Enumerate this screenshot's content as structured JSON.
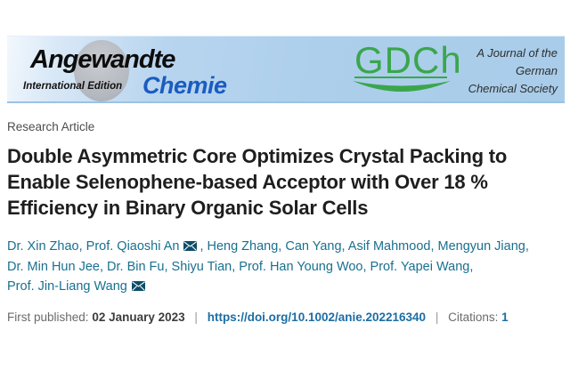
{
  "banner": {
    "angewandte": "Angewandte",
    "international_edition": "International Edition",
    "chemie": "Chemie",
    "gdch": "GDCh",
    "tagline_lines": [
      "A Journal of the",
      "German",
      "Chemical Society"
    ]
  },
  "article": {
    "category": "Research Article",
    "title_lines": [
      "Double Asymmetric Core Optimizes Crystal Packing to",
      "Enable Selenophene-based Acceptor with Over 18 %",
      "Efficiency in Binary Organic Solar Cells"
    ]
  },
  "authors": {
    "lines": [
      {
        "segments": [
          {
            "text": "Dr. Xin Zhao, Prof. Qiaoshi An"
          },
          {
            "icon": "envelope"
          },
          {
            "text": ", Heng Zhang, Can Yang, Asif Mahmood, Mengyun Jiang,"
          }
        ]
      },
      {
        "segments": [
          {
            "text": "Dr. Min Hun Jee, Dr. Bin Fu, Shiyu Tian, Prof. Han Young Woo, Prof. Yapei Wang,"
          }
        ]
      },
      {
        "segments": [
          {
            "text": "Prof. Jin-Liang Wang"
          },
          {
            "icon": "envelope"
          }
        ]
      }
    ]
  },
  "meta": {
    "first_published_label": "First published:",
    "first_published_date": "02 January 2023",
    "separator": "|",
    "doi_link": "https://doi.org/10.1002/anie.202216340",
    "citations_label": "Citations:",
    "citations_count": "1"
  },
  "colors": {
    "author_link": "#19708f",
    "doi_link": "#1c6da3",
    "envelope": "#0e4d68",
    "gdch_green": "#3aa64c",
    "chemie_blue": "#1a5cc0",
    "banner_blue": "#adcfeb"
  }
}
